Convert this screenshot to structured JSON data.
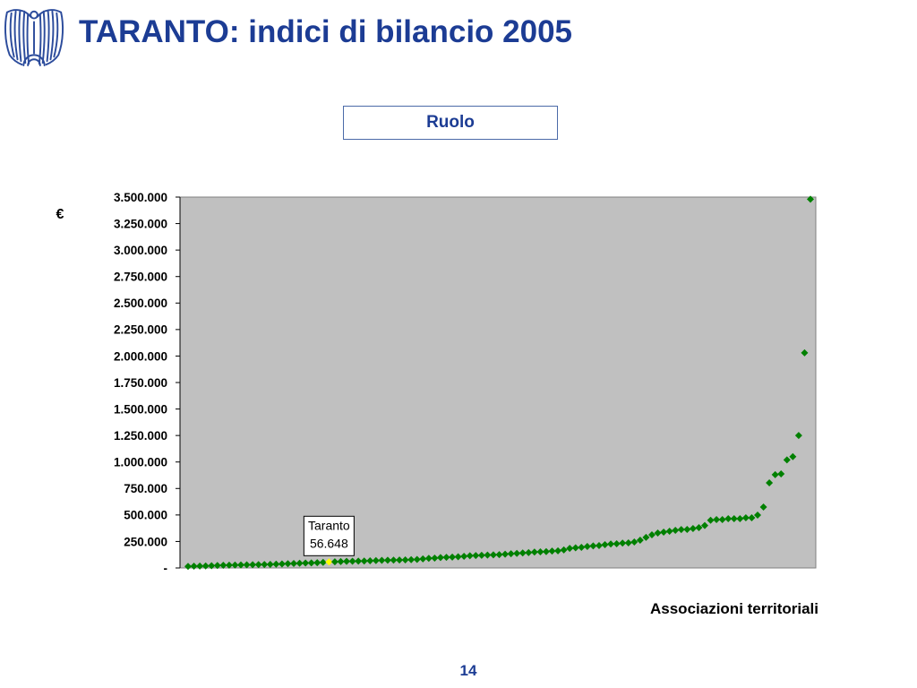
{
  "header": {
    "title": "TARANTO: indici di bilancio 2005",
    "logo_icon": "eagle-logo-icon"
  },
  "chart_data": {
    "type": "scatter",
    "title": "Ruolo",
    "xlabel": "Associazioni territoriali",
    "ylabel": "€",
    "ylim": [
      0,
      3500000
    ],
    "yticks": [
      0,
      250000,
      500000,
      750000,
      1000000,
      1250000,
      1500000,
      1750000,
      2000000,
      2250000,
      2500000,
      2750000,
      3000000,
      3250000,
      3500000
    ],
    "ytick_labels": [
      "-",
      "250.000",
      "500.000",
      "750.000",
      "1.000.000",
      "1.250.000",
      "1.500.000",
      "1.750.000",
      "2.000.000",
      "2.250.000",
      "2.500.000",
      "2.750.000",
      "3.000.000",
      "3.250.000",
      "3.500.000"
    ],
    "grid": false,
    "series": [
      {
        "values": [
          15000,
          17000,
          18000,
          19000,
          21000,
          23000,
          25000,
          26000,
          28000,
          29000,
          30000,
          31000,
          32000,
          33000,
          34000,
          36000,
          38000,
          40000,
          42000,
          44000,
          46000,
          48000,
          50000,
          53000,
          56648,
          58000,
          60000,
          62000,
          63000,
          64000,
          65000,
          68000,
          70000,
          72000,
          73000,
          74000,
          75000,
          76000,
          78000,
          80000,
          86000,
          91000,
          93000,
          98000,
          100000,
          103000,
          106000,
          110000,
          115000,
          117000,
          119000,
          121000,
          124000,
          126000,
          130000,
          134000,
          137000,
          142000,
          145000,
          150000,
          152000,
          154000,
          160000,
          162000,
          170000,
          185000,
          190000,
          194000,
          203000,
          208000,
          211000,
          220000,
          226000,
          228000,
          235000,
          237000,
          245000,
          262000,
          288000,
          313000,
          330000,
          338000,
          347000,
          355000,
          362000,
          364000,
          372000,
          380000,
          400000,
          450000,
          457000,
          457000,
          465000,
          465000,
          465000,
          473000,
          473000,
          499000,
          575000,
          803000,
          880000,
          888000,
          1020000,
          1050000,
          1250000,
          2030000,
          3480000
        ]
      }
    ],
    "annotations": [
      {
        "index": 24,
        "value": 56648,
        "lines": [
          "Taranto",
          "56.648"
        ]
      }
    ]
  },
  "colors": {
    "title": "#1c3c94",
    "marker": "#008000",
    "highlight_marker": "#ffff00",
    "plot_background": "#c0c0c0"
  },
  "footer": {
    "page_number": "14"
  }
}
